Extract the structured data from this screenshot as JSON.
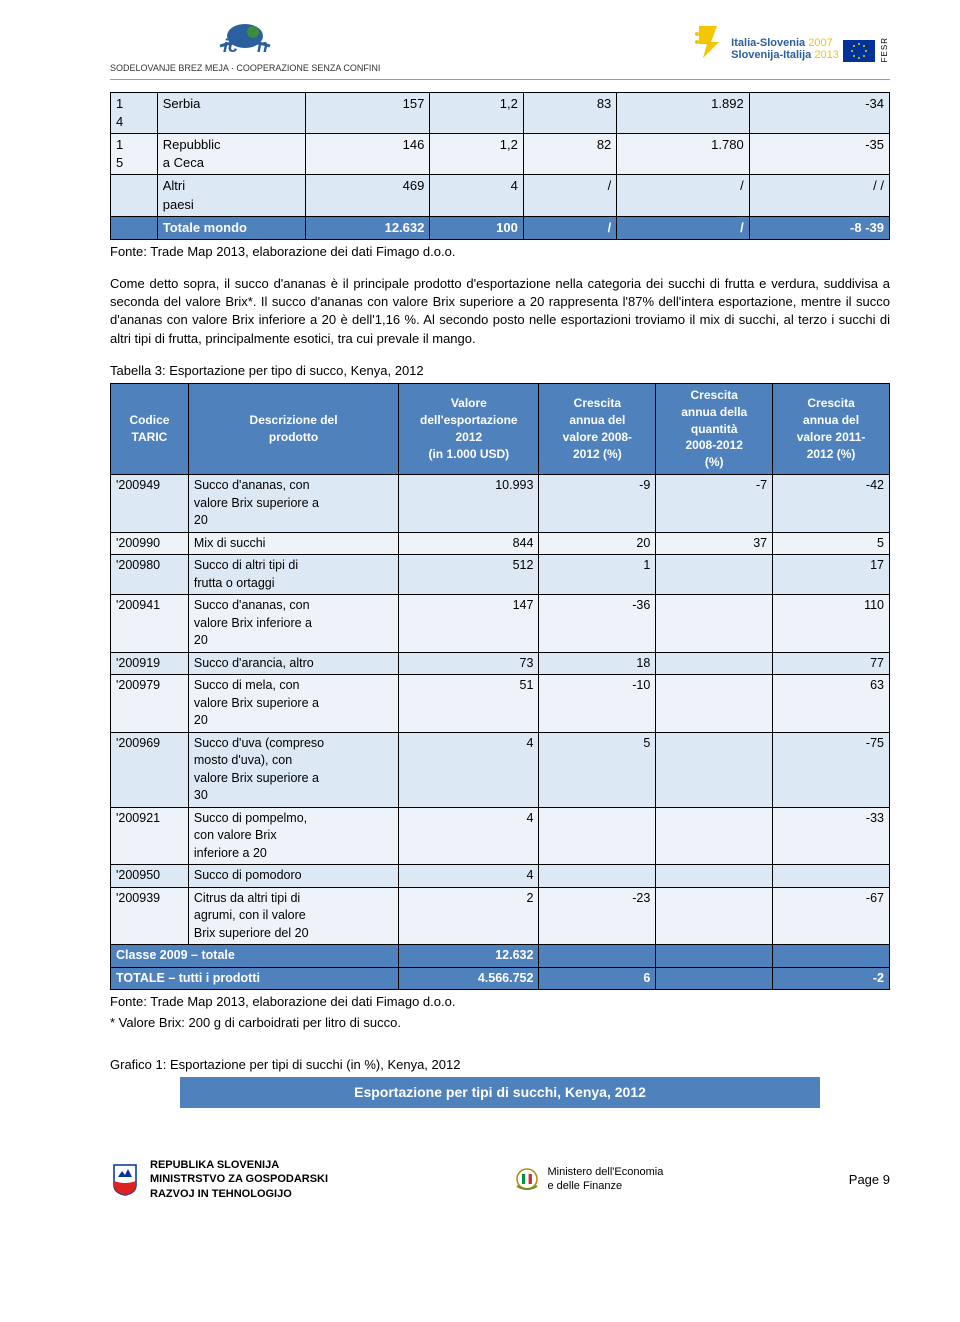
{
  "hdr": {
    "logo_l_txt": "SODELOVANJE BREZ MEJA · COOPERAZIONE SENZA CONFINI",
    "logo_r_t1": "Italia-Slovenia",
    "logo_r_t2": "Slovenija-Italija",
    "logo_r_y": "2007\n2013",
    "fesr": "FESR"
  },
  "t1": {
    "cols_w": [
      "6%",
      "19%",
      "16%",
      "12%",
      "12%",
      "17%",
      "18%"
    ],
    "rows": [
      {
        "cls": "r1",
        "c": [
          "1\n4",
          "Serbia",
          "157",
          "1,2",
          "83",
          "1.892",
          "-34"
        ]
      },
      {
        "cls": "r2",
        "c": [
          "1\n5",
          "Repubblic\na Ceca",
          "146",
          "1,2",
          "82",
          "1.780",
          "-35"
        ]
      },
      {
        "cls": "r1",
        "c": [
          "",
          "Altri\npaesi",
          "469",
          "4",
          "/",
          "/",
          "/ /"
        ]
      },
      {
        "cls": "hl",
        "c": [
          "",
          "Totale mondo",
          "12.632",
          "100",
          "/",
          "/",
          "-8 -39"
        ]
      }
    ]
  },
  "src1": "Fonte: Trade Map 2013, elaborazione dei dati Fimago d.o.o.",
  "para": "Come detto sopra, il succo d'ananas è il principale prodotto d'esportazione nella categoria dei succhi di frutta e verdura, suddivisa a seconda del valore Brix*. Il succo d'ananas con valore Brix superiore a 20 rappresenta l'87% dell'intera esportazione, mentre il succo d'ananas con valore Brix inferiore a 20 è dell'1,16 %. Al secondo posto nelle esportazioni troviamo il mix di succhi, al terzo i succhi di altri tipi di frutta, principalmente esotici, tra cui prevale il mango.",
  "t2": {
    "caption": "Tabella 3: Esportazione per tipo di succo, Kenya, 2012",
    "headers": [
      "Codice\nTARIC",
      "Descrizione del\nprodotto",
      "Valore\ndell'esportazione\n2012\n(in 1.000 USD)",
      "Crescita\nannua del\nvalore 2008-\n2012 (%)",
      "Crescita\nannua della\nquantità\n2008-2012\n(%)",
      "Crescita\nannua del\nvalore 2011-\n2012 (%)"
    ],
    "cols_w": [
      "10%",
      "27%",
      "18%",
      "15%",
      "15%",
      "15%"
    ],
    "rows": [
      {
        "cls": "ra",
        "c": [
          "'200949",
          "Succo d'ananas, con\nvalore Brix superiore a\n20",
          "10.993",
          "-9",
          "-7",
          "-42"
        ]
      },
      {
        "cls": "rb",
        "c": [
          "'200990",
          "Mix di succhi",
          "844",
          "20",
          "37",
          "5"
        ]
      },
      {
        "cls": "ra",
        "c": [
          "'200980",
          "Succo di altri tipi di\nfrutta o ortaggi",
          "512",
          "1",
          "",
          "17"
        ]
      },
      {
        "cls": "rb",
        "c": [
          "'200941",
          "Succo d'ananas, con\nvalore Brix inferiore a\n20",
          "147",
          "-36",
          "",
          "110"
        ]
      },
      {
        "cls": "ra",
        "c": [
          "'200919",
          "Succo d'arancia, altro",
          "73",
          "18",
          "",
          "77"
        ]
      },
      {
        "cls": "rb",
        "c": [
          "'200979",
          "Succo di mela, con\nvalore Brix superiore a\n20",
          "51",
          "-10",
          "",
          "63"
        ]
      },
      {
        "cls": "ra",
        "c": [
          "'200969",
          "Succo d'uva (compreso\nmosto d'uva), con\nvalore Brix superiore a\n30",
          "4",
          "5",
          "",
          "-75"
        ]
      },
      {
        "cls": "rb",
        "c": [
          "'200921",
          "Succo di pompelmo,\ncon valore Brix\ninferiore a 20",
          "4",
          "",
          "",
          "-33"
        ]
      },
      {
        "cls": "ra",
        "c": [
          "'200950",
          "Succo di pomodoro",
          "4",
          "",
          "",
          ""
        ]
      },
      {
        "cls": "rb",
        "c": [
          "'200939",
          "Citrus da altri tipi di\nagrumi, con il valore\nBrix superiore del 20",
          "2",
          "-23",
          "",
          "-67"
        ]
      },
      {
        "cls": "hl",
        "c": [
          "Classe 2009 – totale",
          "",
          "12.632",
          "",
          "",
          ""
        ]
      },
      {
        "cls": "hl",
        "c": [
          "TOTALE – tutti i prodotti",
          "",
          "4.566.752",
          "6",
          "",
          "-2"
        ]
      }
    ]
  },
  "src2a": "Fonte: Trade Map 2013, elaborazione dei dati Fimago d.o.o.",
  "src2b": "* Valore Brix: 200 g di carboidrati per litro di succo.",
  "g": {
    "cap": "Grafico 1: Esportazione per tipi di succhi (in %), Kenya, 2012",
    "sub": "Esportazione per tipi di succhi, Kenya, 2012"
  },
  "foot": {
    "l1": "REPUBLIKA SLOVENIJA",
    "l2": "MINISTRSTVO ZA GOSPODARSKI",
    "l3": "RAZVOJ IN TEHNOLOGIJO",
    "c1": "Ministero dell'Economia",
    "c2": "e delle Finanze",
    "pg": "Page 9"
  },
  "colors": {
    "blue": "#4f81bd",
    "row1": "#dde8f5",
    "row2": "#eef3fa"
  }
}
